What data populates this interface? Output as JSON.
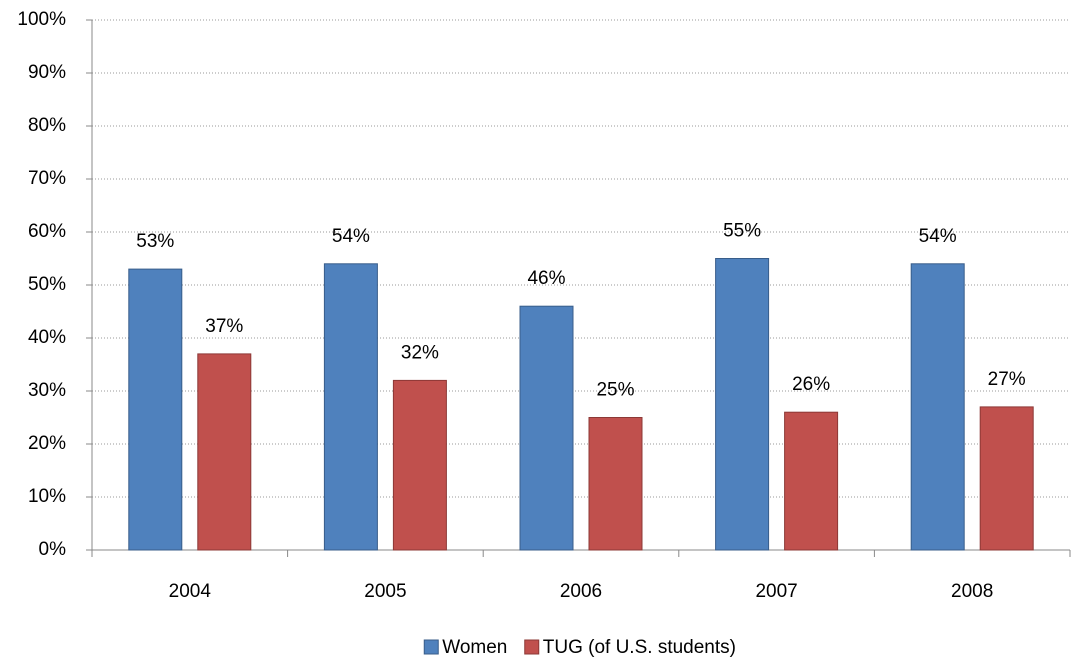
{
  "chart_data": {
    "type": "bar",
    "categories": [
      "2004",
      "2005",
      "2006",
      "2007",
      "2008"
    ],
    "series": [
      {
        "name": "Women",
        "color": "#4f81bd",
        "values": [
          53,
          54,
          46,
          55,
          54
        ],
        "value_labels": [
          "53%",
          "54%",
          "46%",
          "55%",
          "54%"
        ]
      },
      {
        "name": "TUG (of U.S. students)",
        "color": "#c0504d",
        "values": [
          37,
          32,
          25,
          26,
          27
        ],
        "value_labels": [
          "37%",
          "32%",
          "25%",
          "26%",
          "27%"
        ]
      }
    ],
    "ylim": [
      0,
      100
    ],
    "yticks": [
      {
        "value": 0,
        "label": "0%"
      },
      {
        "value": 10,
        "label": "10%"
      },
      {
        "value": 20,
        "label": "20%"
      },
      {
        "value": 30,
        "label": "30%"
      },
      {
        "value": 40,
        "label": "40%"
      },
      {
        "value": 50,
        "label": "50%"
      },
      {
        "value": 60,
        "label": "60%"
      },
      {
        "value": 70,
        "label": "70%"
      },
      {
        "value": 80,
        "label": "80%"
      },
      {
        "value": 90,
        "label": "90%"
      },
      {
        "value": 100,
        "label": "100%"
      }
    ],
    "grid": true,
    "legend": "bottom"
  }
}
